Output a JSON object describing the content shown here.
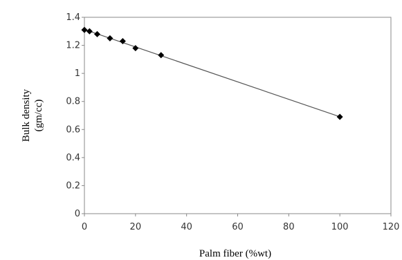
{
  "chart_data": {
    "type": "scatter",
    "title": "",
    "xlabel": "Palm fiber (%wt)",
    "ylabel_lines": [
      "Bulk density",
      "(gm/cc)"
    ],
    "xlim": [
      0,
      120
    ],
    "ylim": [
      0,
      1.4
    ],
    "xticks": [
      "0",
      "20",
      "40",
      "60",
      "80",
      "100",
      "120"
    ],
    "yticks": [
      "0",
      "0.2",
      "0.4",
      "0.6",
      "0.8",
      "1",
      "1.2",
      "1.4"
    ],
    "grid": false,
    "legend": "none",
    "trendline": "linear",
    "marker": "diamond",
    "series": [
      {
        "x": [
          0,
          2,
          5,
          10,
          15,
          20,
          30,
          100
        ],
        "y": [
          1.31,
          1.3,
          1.28,
          1.25,
          1.23,
          1.18,
          1.13,
          0.69
        ]
      }
    ],
    "colors": {
      "marker": "#000000",
      "line": "#555555",
      "frame": "#888888"
    }
  }
}
